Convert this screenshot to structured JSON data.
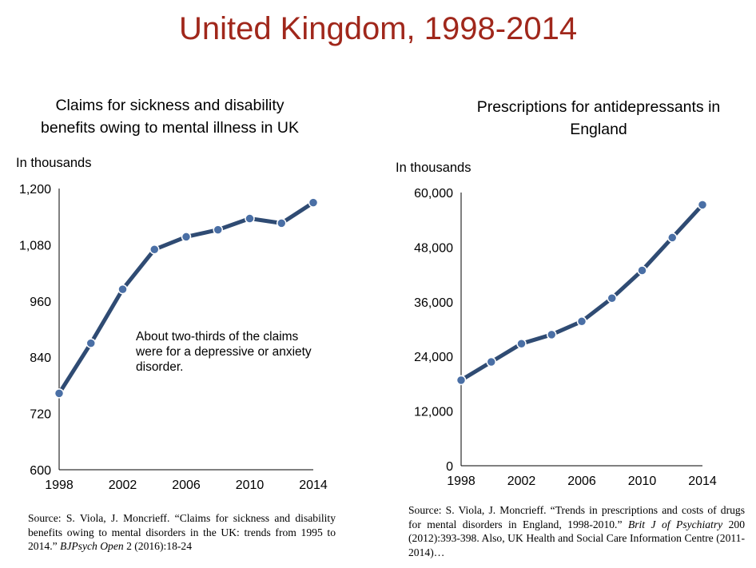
{
  "page_title": "United Kingdom, 1998-2014",
  "accent_color": "#a0271b",
  "line_color": "#2f4b73",
  "marker_color": "#4a6fa5",
  "chart_data": [
    {
      "type": "line",
      "title": "Claims for sickness and disability benefits owing to mental illness in UK",
      "title_lines": [
        "Claims for sickness and disability",
        "benefits owing to mental illness in UK"
      ],
      "ylabel": "In thousands",
      "ylim": [
        600,
        1200
      ],
      "yticks": [
        600,
        720,
        840,
        960,
        1080,
        1200
      ],
      "ytick_labels": [
        "600",
        "720",
        "840",
        "960",
        "1,080",
        "1,200"
      ],
      "xlim": [
        1998,
        2014
      ],
      "xticks": [
        1998,
        2002,
        2006,
        2010,
        2014
      ],
      "xtick_labels": [
        "1998",
        "2002",
        "2006",
        "2010",
        "2014"
      ],
      "x": [
        1998,
        2000,
        2002,
        2004,
        2006,
        2008,
        2010,
        2012,
        2014
      ],
      "values": [
        763,
        870,
        985,
        1070,
        1097,
        1112,
        1136,
        1126,
        1170
      ],
      "annotation_lines": [
        "About two-thirds of the claims",
        "were for a depressive or anxiety",
        "disorder."
      ],
      "legend": "none",
      "grid": false
    },
    {
      "type": "line",
      "title": "Prescriptions for antidepressants in England",
      "title_lines": [
        "Prescriptions for antidepressants in",
        "England"
      ],
      "ylabel": "In thousands",
      "ylim": [
        0,
        60000
      ],
      "yticks": [
        0,
        12000,
        24000,
        36000,
        48000,
        60000
      ],
      "ytick_labels": [
        "0",
        "12,000",
        "24,000",
        "36,000",
        "48,000",
        "60,000"
      ],
      "xlim": [
        1998,
        2014
      ],
      "xticks": [
        1998,
        2002,
        2006,
        2010,
        2014
      ],
      "xtick_labels": [
        "1998",
        "2002",
        "2006",
        "2010",
        "2014"
      ],
      "x": [
        1998,
        2000,
        2002,
        2004,
        2006,
        2008,
        2010,
        2012,
        2014
      ],
      "values": [
        18800,
        22800,
        26800,
        28800,
        31700,
        36800,
        42900,
        50100,
        57300
      ],
      "legend": "none",
      "grid": false
    }
  ],
  "sources": {
    "left": {
      "p1": "Source: S. Viola, J. Moncrieff. “Claims for sickness and disability benefits owing to mental disorders in the UK: trends from 1995 to 2014.” ",
      "journal": "BJPsych Open",
      "p2": " 2 (2016):18-24"
    },
    "right": {
      "p1": "Source: S. Viola, J. Moncrieff. “Trends in prescriptions and costs of drugs for mental disorders in England, 1998-2010.” ",
      "journal": "Brit J of Psychiatry",
      "p2": " 200 (2012):393-398. Also, UK Health and Social Care Information Centre (2011-2014)…"
    }
  }
}
